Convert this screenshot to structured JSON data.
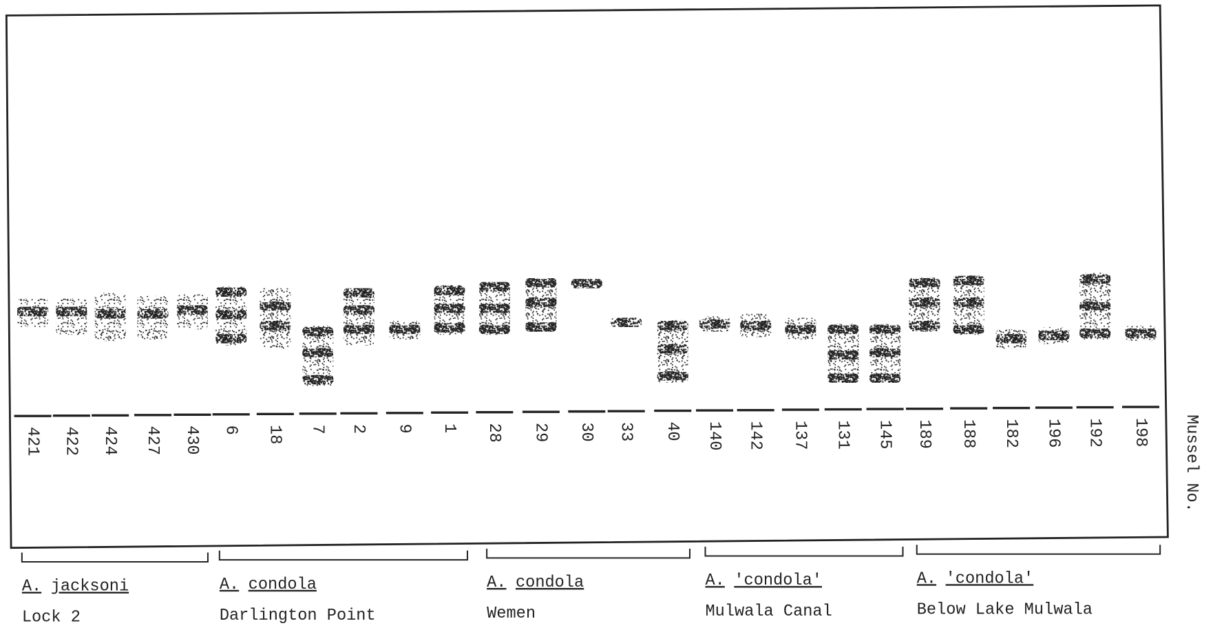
{
  "axis_label": "Mussel No.",
  "lanes": [
    "421",
    "422",
    "424",
    "427",
    "430",
    "6",
    "18",
    "7",
    "2",
    "9",
    "1",
    "28",
    "29",
    "30",
    "33",
    "40",
    "140",
    "142",
    "137",
    "131",
    "145",
    "189",
    "188",
    "182",
    "196",
    "192",
    "198"
  ],
  "groups": [
    {
      "genus": "A.",
      "species": "jacksoni",
      "location": "Lock 2"
    },
    {
      "genus": "A.",
      "species": "condola",
      "location": "Darlington Point"
    },
    {
      "genus": "A.",
      "species": "condola",
      "location": "Wemen"
    },
    {
      "genus": "A.",
      "species": "'condola'",
      "location": "Mulwala Canal"
    },
    {
      "genus": "A.",
      "species": "'condola'",
      "location": "Below Lake Mulwala"
    }
  ]
}
